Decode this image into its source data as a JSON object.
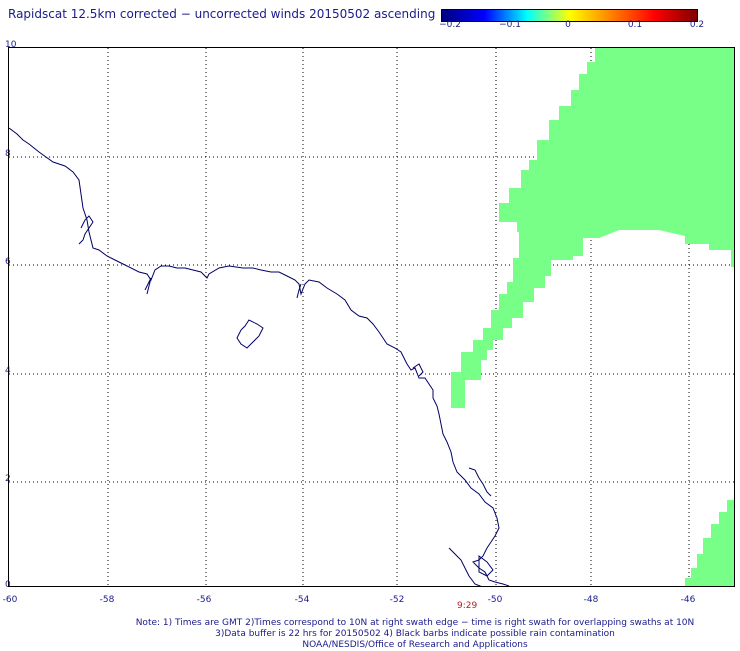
{
  "title": "Rapidscat 12.5km corrected − uncorrected winds 20150502 ascending",
  "colorbar": {
    "ticks": [
      "−0.2",
      "−0.1",
      "0",
      "0.1",
      "0.2"
    ],
    "colors": [
      "#00007f",
      "#0000ff",
      "#00ffff",
      "#ffff00",
      "#ff7f00",
      "#ff0000",
      "#7f0000"
    ]
  },
  "map": {
    "lon_range": [
      -60,
      -45
    ],
    "lat_range": [
      0,
      10
    ],
    "x_tick_labels": [
      "-60",
      "-58",
      "-56",
      "-54",
      "-52",
      "-50",
      "-48",
      "-46"
    ],
    "y_tick_labels": [
      "10",
      "8",
      "6",
      "4",
      "2",
      "0"
    ],
    "grid": "dotted",
    "swath_color": "#77ff88",
    "coast_color": "#000066",
    "time_label": "9:29"
  },
  "notes": [
    "Note: 1) Times are GMT 2)Times correspond to 10N at right swath edge − time is right swath for overlapping swaths at 10N",
    "3)Data buffer is 22 hrs for 20150502 4) Black barbs indicate possible rain contamination",
    "NOAA/NESDIS/Office of Research and Applications"
  ]
}
